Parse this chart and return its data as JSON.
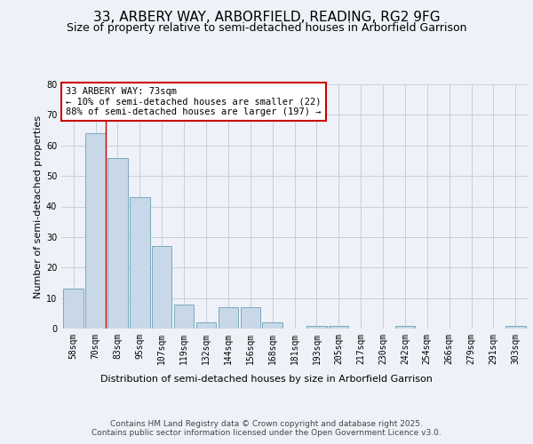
{
  "title": "33, ARBERY WAY, ARBORFIELD, READING, RG2 9FG",
  "subtitle": "Size of property relative to semi-detached houses in Arborfield Garrison",
  "xlabel": "Distribution of semi-detached houses by size in Arborfield Garrison",
  "ylabel": "Number of semi-detached properties",
  "categories": [
    "58sqm",
    "70sqm",
    "83sqm",
    "95sqm",
    "107sqm",
    "119sqm",
    "132sqm",
    "144sqm",
    "156sqm",
    "168sqm",
    "181sqm",
    "193sqm",
    "205sqm",
    "217sqm",
    "230sqm",
    "242sqm",
    "254sqm",
    "266sqm",
    "279sqm",
    "291sqm",
    "303sqm"
  ],
  "values": [
    13,
    64,
    56,
    43,
    27,
    8,
    2,
    7,
    7,
    2,
    0,
    1,
    1,
    0,
    0,
    1,
    0,
    0,
    0,
    0,
    1
  ],
  "bar_color": "#c8d8e8",
  "bar_edge_color": "#7aaabb",
  "highlight_line_color": "#cc0000",
  "annotation_text": "33 ARBERY WAY: 73sqm\n← 10% of semi-detached houses are smaller (22)\n88% of semi-detached houses are larger (197) →",
  "annotation_box_color": "#ffffff",
  "annotation_box_edge": "#cc0000",
  "ylim": [
    0,
    80
  ],
  "yticks": [
    0,
    10,
    20,
    30,
    40,
    50,
    60,
    70,
    80
  ],
  "footer_text": "Contains HM Land Registry data © Crown copyright and database right 2025.\nContains public sector information licensed under the Open Government Licence v3.0.",
  "bg_color": "#eef2f8",
  "plot_bg_color": "#eef2f8",
  "grid_color": "#c5cedc",
  "title_fontsize": 11,
  "subtitle_fontsize": 9,
  "axis_label_fontsize": 8,
  "tick_fontsize": 7,
  "annotation_fontsize": 7.5,
  "footer_fontsize": 6.5
}
